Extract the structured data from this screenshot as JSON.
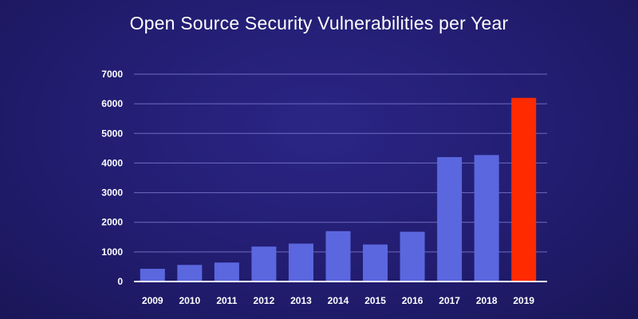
{
  "chart_data": {
    "type": "bar",
    "title": "Open Source Security Vulnerabilities per Year",
    "xlabel": "",
    "ylabel": "",
    "categories": [
      "2009",
      "2010",
      "2011",
      "2012",
      "2013",
      "2014",
      "2015",
      "2016",
      "2017",
      "2018",
      "2019"
    ],
    "values": [
      430,
      560,
      640,
      1180,
      1280,
      1700,
      1250,
      1680,
      4200,
      4270,
      6200
    ],
    "ylim": [
      0,
      7000
    ],
    "yticks": [
      0,
      1000,
      2000,
      3000,
      4000,
      5000,
      6000,
      7000
    ],
    "grid": true,
    "colors": {
      "bar": "#5b67df",
      "highlight": "#ff2a00",
      "grid": "#6f6bc0",
      "axis": "#ffffff"
    },
    "highlight_category": "2019"
  }
}
